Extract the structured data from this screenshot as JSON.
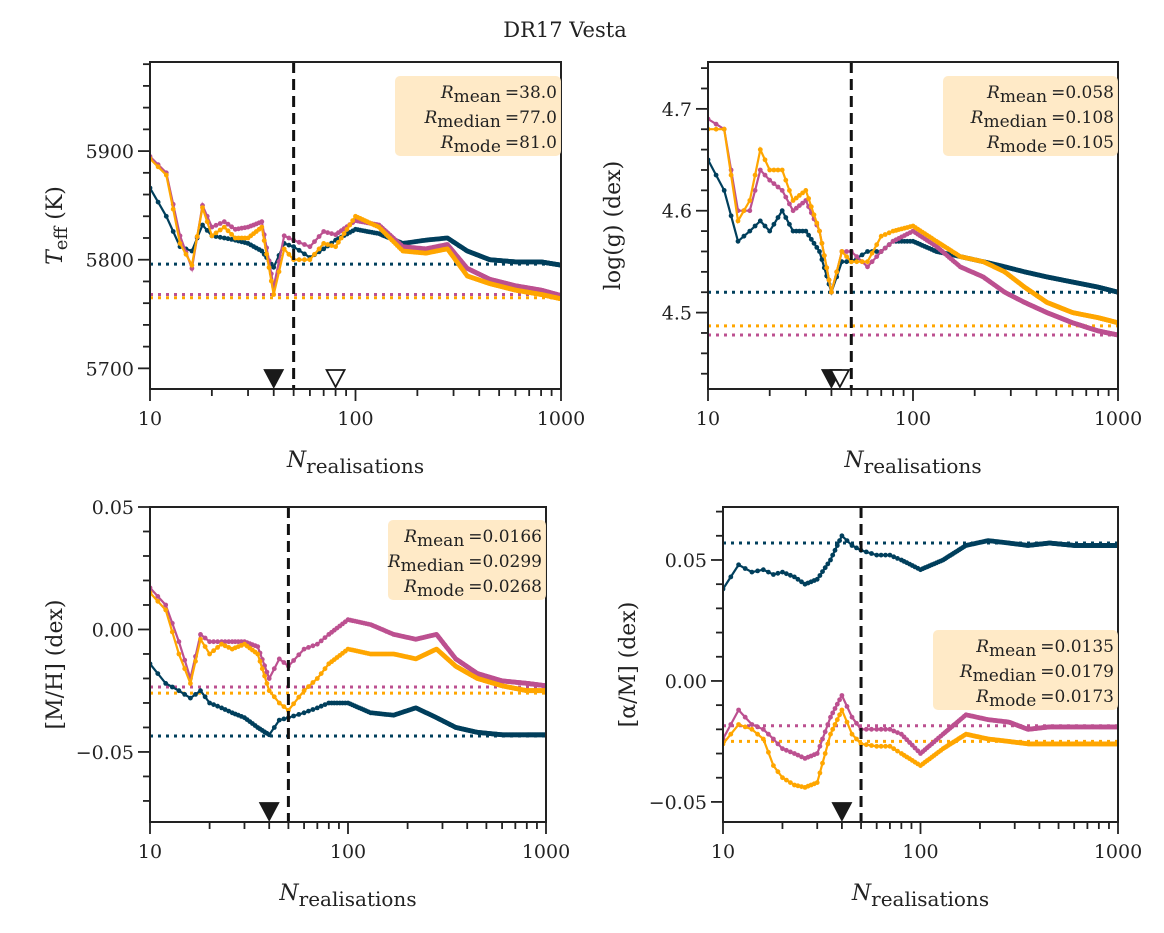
{
  "title": "DR17 Vesta",
  "colors": {
    "series_1": "#003f5c",
    "series_2": "#bc5090",
    "series_3": "#ffa600",
    "legend_bg": "#ffe9c4"
  },
  "chart_data": [
    {
      "type": "line",
      "ylabel_main": "T",
      "ylabel_sub": "eff",
      "ylabel_rest": " (K)",
      "xlabel_main": "N",
      "xlabel_sub": "realisations",
      "xscale": "log",
      "xlim": [
        10,
        1000
      ],
      "xticks": [
        "10",
        "100",
        "1000"
      ],
      "ylim": [
        5681,
        5982
      ],
      "yticks": [
        5700,
        5800,
        5900
      ],
      "yminor": 20,
      "x": [
        10,
        12,
        14,
        16,
        18,
        20,
        23,
        26,
        30,
        35,
        40,
        45,
        50,
        60,
        70,
        80,
        100,
        130,
        170,
        220,
        280,
        350,
        450,
        600,
        800,
        1000
      ],
      "series": [
        {
          "values": [
            5866,
            5840,
            5812,
            5808,
            5832,
            5822,
            5820,
            5818,
            5815,
            5808,
            5793,
            5815,
            5812,
            5802,
            5810,
            5818,
            5828,
            5824,
            5815,
            5818,
            5820,
            5808,
            5800,
            5798,
            5798,
            5795
          ],
          "reference": 5796
        },
        {
          "values": [
            5895,
            5880,
            5822,
            5792,
            5850,
            5830,
            5835,
            5828,
            5830,
            5835,
            5775,
            5822,
            5818,
            5812,
            5826,
            5823,
            5836,
            5832,
            5812,
            5810,
            5814,
            5792,
            5782,
            5776,
            5772,
            5767
          ],
          "reference": 5768
        },
        {
          "values": [
            5893,
            5878,
            5815,
            5795,
            5848,
            5822,
            5830,
            5820,
            5820,
            5830,
            5768,
            5810,
            5800,
            5800,
            5815,
            5812,
            5840,
            5830,
            5808,
            5806,
            5810,
            5785,
            5778,
            5772,
            5768,
            5764
          ],
          "reference": 5765
        }
      ],
      "vline": 50,
      "markers": [
        {
          "x": 40,
          "filled": true
        },
        {
          "x": 80,
          "filled": false
        }
      ],
      "legend": {
        "placement": "top-right",
        "rows": [
          {
            "sub": "mean",
            "value": "=38.0"
          },
          {
            "sub": "median",
            "value": "=77.0"
          },
          {
            "sub": "mode",
            "value": "=81.0"
          }
        ]
      }
    },
    {
      "type": "line",
      "ylabel_main": "log(",
      "ylabel_sub": "",
      "ylabel_rest": "g) (dex)",
      "xlabel_main": "N",
      "xlabel_sub": "realisations",
      "xscale": "log",
      "xlim": [
        10,
        1000
      ],
      "xticks": [
        "10",
        "100",
        "1000"
      ],
      "ylim": [
        4.425,
        4.746
      ],
      "yticks": [
        4.5,
        4.6,
        4.7
      ],
      "yminor": 0.02,
      "x": [
        10,
        12,
        14,
        16,
        18,
        20,
        23,
        26,
        30,
        35,
        40,
        45,
        50,
        60,
        70,
        80,
        100,
        130,
        170,
        220,
        280,
        350,
        450,
        600,
        800,
        1000
      ],
      "series": [
        {
          "values": [
            4.65,
            4.62,
            4.57,
            4.58,
            4.59,
            4.58,
            4.6,
            4.58,
            4.58,
            4.56,
            4.52,
            4.55,
            4.55,
            4.56,
            4.56,
            4.57,
            4.57,
            4.56,
            4.555,
            4.55,
            4.545,
            4.54,
            4.535,
            4.53,
            4.525,
            4.52
          ],
          "reference": 4.52
        },
        {
          "values": [
            4.69,
            4.68,
            4.6,
            4.6,
            4.64,
            4.63,
            4.62,
            4.6,
            4.61,
            4.58,
            4.52,
            4.56,
            4.56,
            4.545,
            4.56,
            4.57,
            4.58,
            4.565,
            4.545,
            4.535,
            4.52,
            4.51,
            4.5,
            4.49,
            4.482,
            4.478
          ],
          "reference": 4.478
        },
        {
          "values": [
            4.68,
            4.68,
            4.59,
            4.61,
            4.66,
            4.64,
            4.64,
            4.61,
            4.62,
            4.58,
            4.52,
            4.56,
            4.55,
            4.55,
            4.575,
            4.58,
            4.585,
            4.57,
            4.555,
            4.55,
            4.54,
            4.525,
            4.51,
            4.5,
            4.495,
            4.49
          ],
          "reference": 4.487
        }
      ],
      "vline": 50,
      "markers": [
        {
          "x": 40,
          "filled": true
        },
        {
          "x": 44,
          "filled": false
        }
      ],
      "legend": {
        "placement": "top-right",
        "rows": [
          {
            "sub": "mean",
            "value": "=0.058"
          },
          {
            "sub": "median",
            "value": "=0.108"
          },
          {
            "sub": "mode",
            "value": "=0.105"
          }
        ]
      }
    },
    {
      "type": "line",
      "ylabel_main": "[M/H] (dex)",
      "ylabel_sub": "",
      "ylabel_rest": "",
      "xlabel_main": "N",
      "xlabel_sub": "realisations",
      "xscale": "log",
      "xlim": [
        10,
        1000
      ],
      "xticks": [
        "10",
        "100",
        "1000"
      ],
      "ylim": [
        -0.0786,
        0.05
      ],
      "yticks": [
        -0.05,
        0.0,
        0.05
      ],
      "yminor": 0.01,
      "x": [
        10,
        12,
        14,
        16,
        18,
        20,
        23,
        26,
        30,
        35,
        40,
        45,
        50,
        60,
        70,
        80,
        100,
        130,
        170,
        220,
        280,
        350,
        450,
        600,
        800,
        1000
      ],
      "series": [
        {
          "values": [
            -0.014,
            -0.022,
            -0.025,
            -0.028,
            -0.025,
            -0.03,
            -0.032,
            -0.034,
            -0.036,
            -0.04,
            -0.043,
            -0.037,
            -0.036,
            -0.034,
            -0.032,
            -0.03,
            -0.03,
            -0.034,
            -0.035,
            -0.032,
            -0.036,
            -0.04,
            -0.042,
            -0.043,
            -0.043,
            -0.043
          ],
          "reference": -0.0435
        },
        {
          "values": [
            0.017,
            0.01,
            -0.005,
            -0.02,
            -0.002,
            -0.005,
            -0.005,
            -0.005,
            -0.005,
            -0.007,
            -0.02,
            -0.012,
            -0.015,
            -0.008,
            -0.006,
            -0.002,
            0.004,
            0.002,
            -0.002,
            -0.004,
            -0.002,
            -0.012,
            -0.018,
            -0.021,
            -0.022,
            -0.023
          ],
          "reference": -0.0235
        },
        {
          "values": [
            0.015,
            0.008,
            -0.01,
            -0.022,
            -0.004,
            -0.01,
            -0.006,
            -0.008,
            -0.006,
            -0.01,
            -0.025,
            -0.03,
            -0.033,
            -0.025,
            -0.02,
            -0.014,
            -0.008,
            -0.01,
            -0.01,
            -0.012,
            -0.008,
            -0.015,
            -0.02,
            -0.023,
            -0.025,
            -0.025
          ],
          "reference": -0.026
        }
      ],
      "vline": 50,
      "markers": [
        {
          "x": 40,
          "filled": true
        }
      ],
      "legend": {
        "placement": "top-right",
        "rows": [
          {
            "sub": "mean",
            "value": "=0.0166"
          },
          {
            "sub": "median",
            "value": "=0.0299"
          },
          {
            "sub": "mode",
            "value": "=0.0268"
          }
        ]
      }
    },
    {
      "type": "line",
      "ylabel_main": "[α/M] (dex)",
      "ylabel_sub": "",
      "ylabel_rest": "",
      "xlabel_main": "N",
      "xlabel_sub": "realisations",
      "xscale": "log",
      "xlim": [
        10,
        1000
      ],
      "xticks": [
        "10",
        "100",
        "1000"
      ],
      "ylim": [
        -0.0583,
        0.0719
      ],
      "yticks": [
        -0.05,
        0.0,
        0.05
      ],
      "yminor": 0.01,
      "x": [
        10,
        12,
        14,
        16,
        18,
        20,
        23,
        26,
        30,
        35,
        40,
        45,
        50,
        60,
        70,
        80,
        100,
        130,
        170,
        220,
        280,
        350,
        450,
        600,
        800,
        1000
      ],
      "series": [
        {
          "values": [
            0.038,
            0.048,
            0.045,
            0.046,
            0.044,
            0.045,
            0.043,
            0.04,
            0.042,
            0.05,
            0.06,
            0.056,
            0.054,
            0.052,
            0.052,
            0.05,
            0.046,
            0.05,
            0.056,
            0.058,
            0.057,
            0.056,
            0.057,
            0.056,
            0.056,
            0.056
          ],
          "reference": 0.057
        },
        {
          "values": [
            -0.024,
            -0.012,
            -0.018,
            -0.02,
            -0.024,
            -0.028,
            -0.03,
            -0.032,
            -0.03,
            -0.015,
            -0.006,
            -0.015,
            -0.02,
            -0.02,
            -0.02,
            -0.022,
            -0.03,
            -0.022,
            -0.014,
            -0.016,
            -0.017,
            -0.02,
            -0.019,
            -0.019,
            -0.019,
            -0.019
          ],
          "reference": -0.0185
        },
        {
          "values": [
            -0.026,
            -0.018,
            -0.02,
            -0.024,
            -0.035,
            -0.04,
            -0.043,
            -0.044,
            -0.042,
            -0.022,
            -0.012,
            -0.022,
            -0.026,
            -0.027,
            -0.027,
            -0.03,
            -0.035,
            -0.028,
            -0.022,
            -0.024,
            -0.025,
            -0.026,
            -0.026,
            -0.026,
            -0.026,
            -0.026
          ],
          "reference": -0.025
        }
      ],
      "vline": 50,
      "markers": [
        {
          "x": 40,
          "filled": true
        }
      ],
      "legend": {
        "placement": "center-right",
        "rows": [
          {
            "sub": "mean",
            "value": "=0.0135"
          },
          {
            "sub": "median",
            "value": "=0.0179"
          },
          {
            "sub": "mode",
            "value": "=0.0173"
          }
        ]
      }
    }
  ]
}
